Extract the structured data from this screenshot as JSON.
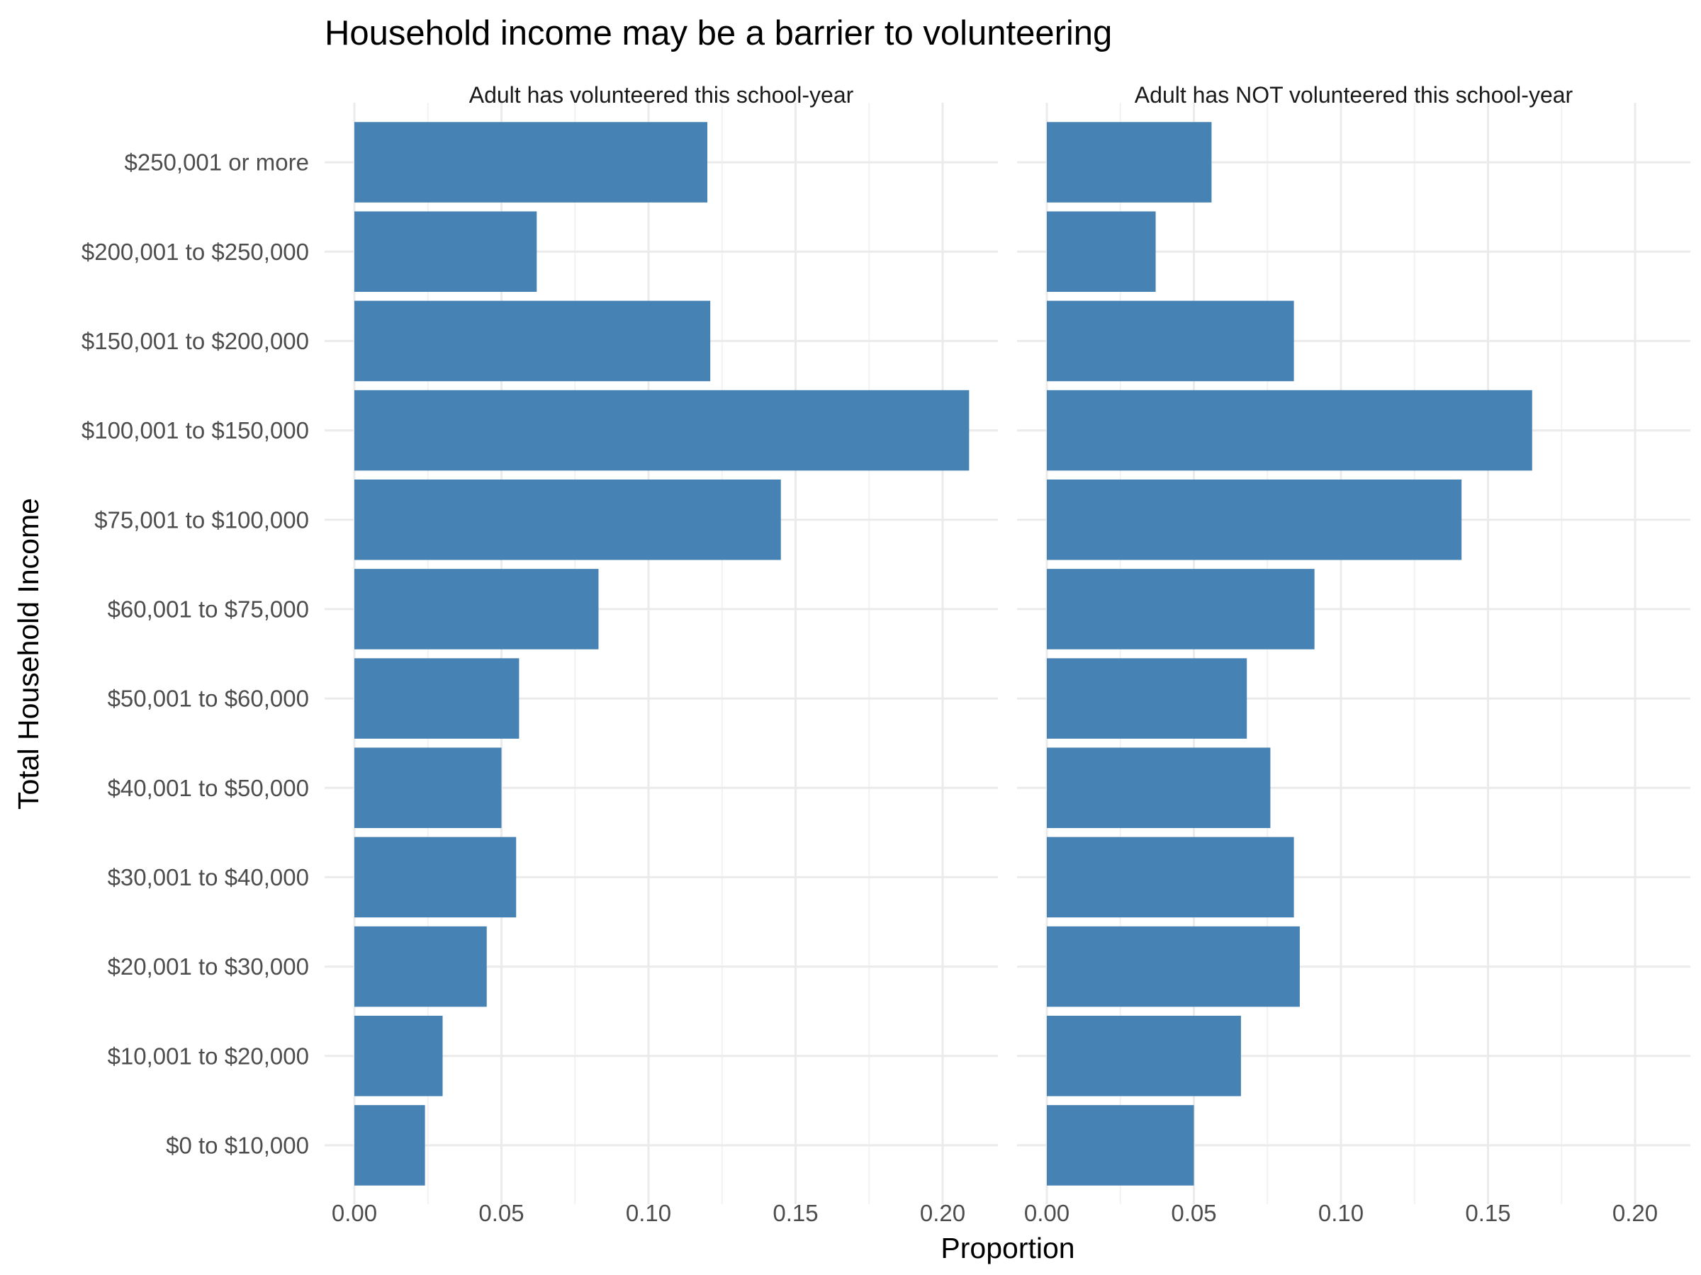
{
  "chart_data": {
    "type": "bar",
    "orientation": "horizontal",
    "title": "Household income may be a barrier to volunteering",
    "xlabel": "Proportion",
    "ylabel": "Total Household Income",
    "xlim": [
      0,
      0.2
    ],
    "x_ticks": [
      "0.00",
      "0.05",
      "0.10",
      "0.15",
      "0.20"
    ],
    "x_tick_values": [
      0,
      0.05,
      0.1,
      0.15,
      0.2
    ],
    "grid": true,
    "bar_color": "#4682b4",
    "categories": [
      "$0 to $10,000",
      "$10,001 to $20,000",
      "$20,001 to $30,000",
      "$30,001 to $40,000",
      "$40,001 to $50,000",
      "$50,001 to $60,000",
      "$60,001 to $75,000",
      "$75,001 to $100,000",
      "$100,001 to $150,000",
      "$150,001 to $200,000",
      "$200,001 to $250,000",
      "$250,001 or more"
    ],
    "panels": [
      {
        "label": "Adult has volunteered this school-year",
        "values": [
          0.024,
          0.03,
          0.045,
          0.055,
          0.05,
          0.056,
          0.083,
          0.145,
          0.209,
          0.121,
          0.062,
          0.12
        ]
      },
      {
        "label": "Adult has NOT volunteered this school-year",
        "values": [
          0.05,
          0.066,
          0.086,
          0.084,
          0.076,
          0.068,
          0.091,
          0.141,
          0.165,
          0.084,
          0.037,
          0.056
        ]
      }
    ]
  }
}
